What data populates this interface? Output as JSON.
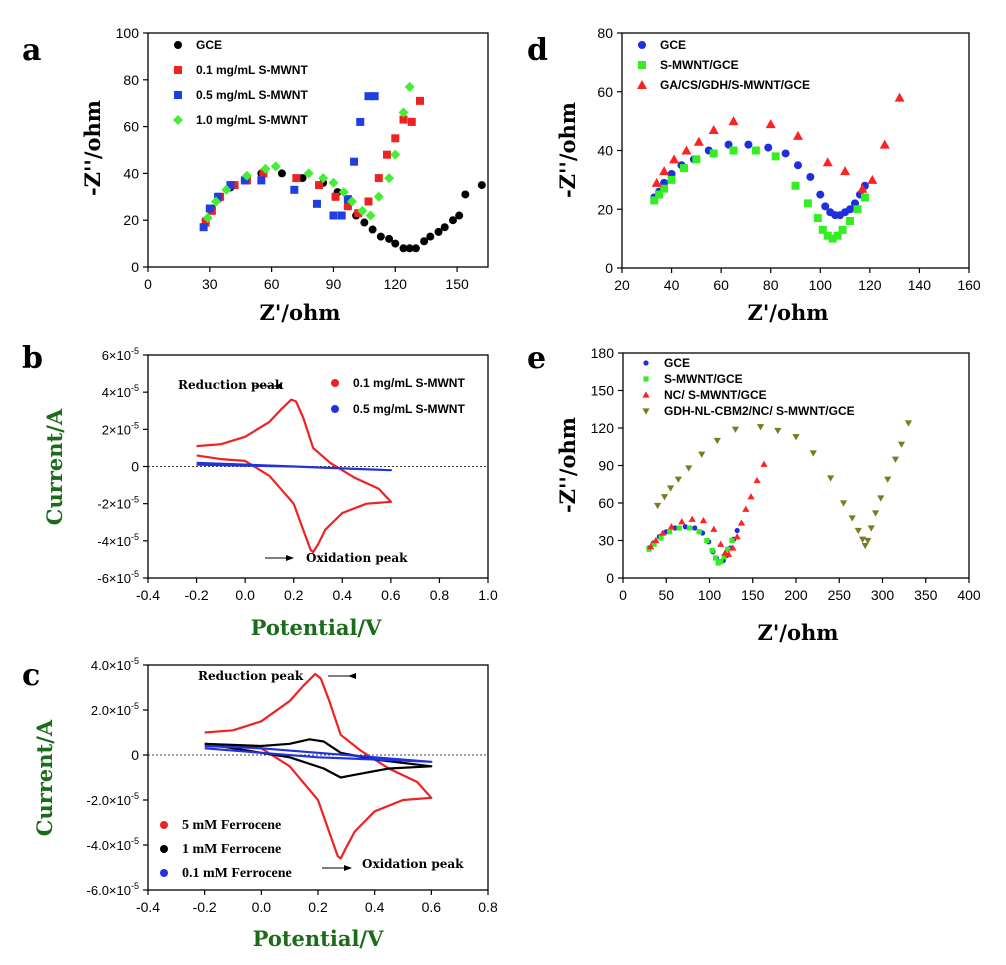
{
  "chart_data": [
    {
      "id": "a",
      "panel_label": "a",
      "type": "scatter",
      "xlabel": "Z'/ohm",
      "ylabel": "-Z''/ohm",
      "xlim": [
        0,
        165
      ],
      "ylim": [
        0,
        100
      ],
      "xticks": [
        0,
        30,
        60,
        90,
        120,
        150
      ],
      "yticks": [
        0,
        20,
        40,
        60,
        80,
        100
      ],
      "legend_position": "top-left",
      "series": [
        {
          "name": "GCE",
          "color": "#000000",
          "marker": "circle",
          "x": [
            28,
            31,
            34,
            40,
            47,
            55,
            65,
            75,
            85,
            92,
            97,
            101,
            105,
            109,
            113,
            117,
            120,
            124,
            127,
            130,
            134,
            137,
            141,
            144,
            148,
            151,
            154,
            162
          ],
          "y": [
            20,
            25,
            29,
            34,
            37,
            40,
            40,
            38,
            36,
            32,
            26,
            22,
            19,
            16,
            13,
            12,
            10,
            8,
            8,
            8,
            11,
            13,
            15,
            17,
            20,
            22,
            31,
            35
          ]
        },
        {
          "name": "0.1 mg/mL S-MWNT",
          "color": "#ee2222",
          "marker": "square",
          "x": [
            28,
            31,
            35,
            42,
            48,
            56,
            72,
            83,
            91,
            97,
            102,
            107,
            112,
            116,
            120,
            124,
            128,
            132
          ],
          "y": [
            19,
            24,
            30,
            35,
            37,
            40,
            38,
            35,
            30,
            26,
            23,
            28,
            38,
            48,
            55,
            63,
            62,
            71
          ]
        },
        {
          "name": "0.5 mg/mL S-MWNT",
          "color": "#1f3fe0",
          "marker": "square",
          "x": [
            27,
            30,
            34,
            40,
            47,
            55,
            71,
            82,
            90,
            94,
            97,
            100,
            103,
            107,
            110
          ],
          "y": [
            17,
            25,
            30,
            35,
            37,
            37,
            33,
            27,
            22,
            22,
            29,
            45,
            62,
            73,
            73
          ]
        },
        {
          "name": "1.0 mg/mL S-MWNT",
          "color": "#44ee33",
          "marker": "diamond",
          "x": [
            29,
            33,
            38,
            48,
            57,
            62,
            78,
            85,
            90,
            95,
            99,
            104,
            108,
            112,
            117,
            120,
            124,
            127
          ],
          "y": [
            21,
            28,
            33,
            39,
            42,
            43,
            40,
            38,
            36,
            32,
            28,
            24,
            22,
            30,
            38,
            48,
            66,
            77
          ]
        }
      ]
    },
    {
      "id": "b",
      "panel_label": "b",
      "type": "line",
      "xlabel": "Potential/V",
      "ylabel": "Current/A",
      "xlim": [
        -0.4,
        1.0
      ],
      "ylim": [
        -6e-05,
        6e-05
      ],
      "xticks": [
        "-0.4",
        "-0.2",
        "0.0",
        "0.2",
        "0.4",
        "0.6",
        "0.8",
        "1.0"
      ],
      "yticks": [
        "-6×10",
        "-4×10",
        "-2×10",
        "0",
        "2×10",
        "4×10",
        "6×10"
      ],
      "ytick_exponent": "-5",
      "zero_line": "dotted",
      "legend_position": "top-right",
      "annotations": [
        "Reduction peak",
        "Oxidation peak"
      ],
      "series": [
        {
          "name": "0.1 mg/mL S-MWNT",
          "color": "#ee2222",
          "marker": "circle",
          "x": [
            -0.2,
            -0.1,
            0.0,
            0.1,
            0.15,
            0.19,
            0.21,
            0.24,
            0.28,
            0.35,
            0.45,
            0.55,
            0.6,
            0.5,
            0.4,
            0.33,
            0.3,
            0.28,
            0.27,
            0.25,
            0.2,
            0.1,
            0.0,
            -0.1,
            -0.2
          ],
          "y": [
            1.1e-05,
            1.2e-05,
            1.6e-05,
            2.4e-05,
            3.1e-05,
            3.6e-05,
            3.5e-05,
            2.6e-05,
            1e-05,
            2e-06,
            -6e-06,
            -1.2e-05,
            -1.9e-05,
            -2e-05,
            -2.5e-05,
            -3.4e-05,
            -4.2e-05,
            -4.6e-05,
            -4.5e-05,
            -3.8e-05,
            -2e-05,
            -5e-06,
            3e-06,
            4e-06,
            6e-06
          ]
        },
        {
          "name": "0.5 mg/mL S-MWNT",
          "color": "#2233dd",
          "marker": "circle",
          "x": [
            -0.2,
            0.0,
            0.2,
            0.4,
            0.6,
            0.4,
            0.2,
            0.0,
            -0.2
          ],
          "y": [
            2e-06,
            1e-06,
            0.0,
            -1e-06,
            -2e-06,
            -1e-06,
            0.0,
            5e-07,
            1e-06
          ]
        }
      ]
    },
    {
      "id": "c",
      "panel_label": "c",
      "type": "line",
      "xlabel": "Potential/V",
      "ylabel": "Current/A",
      "xlim": [
        -0.4,
        0.8
      ],
      "ylim": [
        -6e-05,
        4e-05
      ],
      "xticks": [
        "-0.4",
        "-0.2",
        "0.0",
        "0.2",
        "0.4",
        "0.6",
        "0.8"
      ],
      "yticks": [
        "-6.0×10",
        "-4.0×10",
        "-2.0×10",
        "0",
        "2.0×10",
        "4.0×10"
      ],
      "ytick_exponent": "-5",
      "zero_line": "dotted",
      "legend_position": "bottom-left",
      "annotations": [
        "Reduction peak",
        "Oxidation peak"
      ],
      "series": [
        {
          "name": "5 mM Ferrocene",
          "color": "#ee2222",
          "marker": "circle",
          "x": [
            -0.2,
            -0.1,
            0.0,
            0.1,
            0.15,
            0.19,
            0.21,
            0.24,
            0.28,
            0.35,
            0.45,
            0.55,
            0.6,
            0.5,
            0.4,
            0.33,
            0.3,
            0.28,
            0.27,
            0.25,
            0.2,
            0.1,
            0.0,
            -0.1,
            -0.2
          ],
          "y": [
            1e-05,
            1.1e-05,
            1.5e-05,
            2.4e-05,
            3.1e-05,
            3.6e-05,
            3.4e-05,
            2.4e-05,
            9e-06,
            2e-06,
            -6e-06,
            -1.2e-05,
            -1.9e-05,
            -2e-05,
            -2.5e-05,
            -3.4e-05,
            -4.1e-05,
            -4.6e-05,
            -4.5e-05,
            -3.8e-05,
            -2e-05,
            -5e-06,
            3e-06,
            4e-06,
            5e-06
          ]
        },
        {
          "name": "1   mM Ferrocene",
          "color": "#000000",
          "marker": "circle",
          "x": [
            -0.2,
            0.0,
            0.1,
            0.17,
            0.22,
            0.28,
            0.4,
            0.6,
            0.45,
            0.32,
            0.28,
            0.22,
            0.1,
            0.0,
            -0.2
          ],
          "y": [
            5e-06,
            4e-06,
            5e-06,
            7e-06,
            6e-06,
            1e-06,
            -2e-06,
            -5e-06,
            -6e-06,
            -9e-06,
            -1e-05,
            -6e-06,
            -1e-06,
            1e-06,
            5e-06
          ]
        },
        {
          "name": "0.1 mM Ferrocene",
          "color": "#2233dd",
          "marker": "circle",
          "x": [
            -0.2,
            0.0,
            0.2,
            0.4,
            0.6,
            0.4,
            0.2,
            0.0,
            -0.2
          ],
          "y": [
            4e-06,
            3e-06,
            1e-06,
            -1e-06,
            -3e-06,
            -2e-06,
            -1e-06,
            1e-06,
            3e-06
          ]
        }
      ]
    },
    {
      "id": "d",
      "panel_label": "d",
      "type": "scatter",
      "xlabel": "Z'/ohm",
      "ylabel": "-Z''/ohm",
      "xlim": [
        20,
        160
      ],
      "ylim": [
        0,
        80
      ],
      "xticks": [
        20,
        40,
        60,
        80,
        100,
        120,
        140,
        160
      ],
      "yticks": [
        0,
        20,
        40,
        60,
        80
      ],
      "legend_position": "top-left",
      "series": [
        {
          "name": "GCE",
          "color": "#1e2ee0",
          "marker": "circle",
          "x": [
            33,
            35,
            37,
            40,
            44,
            49,
            55,
            63,
            71,
            79,
            86,
            91,
            96,
            100,
            102,
            104,
            106,
            108,
            110,
            112,
            114,
            116,
            118
          ],
          "y": [
            24,
            26,
            29,
            32,
            35,
            37,
            40,
            42,
            42,
            41,
            39,
            35,
            31,
            25,
            21,
            19,
            18,
            18,
            19,
            20,
            22,
            25,
            28
          ]
        },
        {
          "name": "S-MWNT/GCE",
          "color": "#33ee22",
          "marker": "square",
          "x": [
            33,
            35,
            37,
            40,
            45,
            50,
            57,
            65,
            74,
            82,
            90,
            95,
            99,
            101,
            103,
            105,
            107,
            109,
            112,
            115,
            118
          ],
          "y": [
            23,
            25,
            27,
            30,
            34,
            37,
            39,
            40,
            40,
            38,
            28,
            22,
            17,
            13,
            11,
            10,
            11,
            13,
            16,
            20,
            24
          ]
        },
        {
          "name": "GA/CS/GDH/S-MWNT/GCE",
          "color": "#ff2222",
          "marker": "triangle",
          "x": [
            34,
            37,
            41,
            46,
            51,
            57,
            65,
            80,
            91,
            103,
            110,
            117,
            121,
            126,
            132
          ],
          "y": [
            29,
            33,
            37,
            40,
            43,
            47,
            50,
            49,
            45,
            36,
            33,
            27,
            30,
            42,
            58
          ]
        }
      ]
    },
    {
      "id": "e",
      "panel_label": "e",
      "type": "scatter",
      "xlabel": "Z'/ohm",
      "ylabel": "-Z''/ohm",
      "xlim": [
        0,
        400
      ],
      "ylim": [
        0,
        180
      ],
      "xticks": [
        0,
        50,
        100,
        150,
        200,
        250,
        300,
        350,
        400
      ],
      "yticks": [
        0,
        30,
        60,
        90,
        120,
        150,
        180
      ],
      "legend_position": "top-left",
      "series": [
        {
          "name": "GCE",
          "color": "#1e2ee0",
          "marker": "circle",
          "x": [
            30,
            35,
            42,
            50,
            60,
            72,
            83,
            92,
            99,
            104,
            108,
            112,
            116,
            120,
            124,
            128,
            132
          ],
          "y": [
            24,
            28,
            33,
            37,
            40,
            41,
            40,
            36,
            29,
            21,
            16,
            13,
            14,
            18,
            24,
            31,
            38
          ]
        },
        {
          "name": "S-MWNT/GCE",
          "color": "#33ee22",
          "marker": "square",
          "x": [
            30,
            36,
            44,
            54,
            65,
            77,
            88,
            97,
            103,
            107,
            110,
            113,
            117,
            121,
            126
          ],
          "y": [
            23,
            27,
            32,
            37,
            40,
            40,
            37,
            30,
            22,
            16,
            12,
            13,
            17,
            23,
            30
          ]
        },
        {
          "name": "NC/ S-MWNT/GCE",
          "color": "#ff2222",
          "marker": "triangle",
          "x": [
            32,
            38,
            46,
            56,
            68,
            80,
            93,
            105,
            113,
            118,
            122,
            127,
            132,
            137,
            142,
            148,
            155,
            163
          ],
          "y": [
            25,
            30,
            36,
            41,
            45,
            47,
            46,
            39,
            27,
            20,
            19,
            24,
            33,
            44,
            55,
            65,
            78,
            91
          ]
        },
        {
          "name": "GDH-NL-CBM2/NC/ S-MWNT/GCE",
          "color": "#7a7a1e",
          "marker": "triangle-down",
          "x": [
            40,
            48,
            55,
            64,
            76,
            91,
            109,
            130,
            159,
            179,
            200,
            220,
            240,
            255,
            265,
            272,
            277,
            280,
            283,
            287,
            292,
            298,
            306,
            315,
            322,
            330
          ],
          "y": [
            58,
            65,
            72,
            79,
            88,
            99,
            110,
            119,
            121,
            118,
            113,
            100,
            80,
            60,
            48,
            38,
            31,
            26,
            30,
            40,
            52,
            64,
            79,
            95,
            107,
            124
          ]
        }
      ]
    }
  ]
}
